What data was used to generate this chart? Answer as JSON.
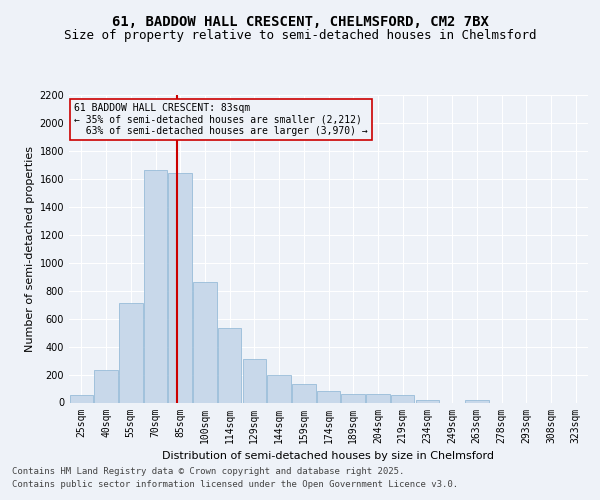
{
  "title": "61, BADDOW HALL CRESCENT, CHELMSFORD, CM2 7BX",
  "subtitle": "Size of property relative to semi-detached houses in Chelmsford",
  "xlabel": "Distribution of semi-detached houses by size in Chelmsford",
  "ylabel": "Number of semi-detached properties",
  "categories": [
    "25sqm",
    "40sqm",
    "55sqm",
    "70sqm",
    "85sqm",
    "100sqm",
    "114sqm",
    "129sqm",
    "144sqm",
    "159sqm",
    "174sqm",
    "189sqm",
    "204sqm",
    "219sqm",
    "234sqm",
    "249sqm",
    "263sqm",
    "278sqm",
    "293sqm",
    "308sqm",
    "323sqm"
  ],
  "values": [
    55,
    230,
    710,
    1660,
    1640,
    860,
    530,
    310,
    195,
    130,
    80,
    60,
    60,
    55,
    20,
    0,
    20,
    0,
    0,
    0,
    0
  ],
  "bar_color": "#c8d8ea",
  "bar_edge_color": "#8ab4d4",
  "marker_label": "61 BADDOW HALL CRESCENT: 83sqm",
  "smaller_pct": "35% of semi-detached houses are smaller (2,212)",
  "larger_pct": "63% of semi-detached houses are larger (3,970)",
  "vline_color": "#cc0000",
  "annotation_box_color": "#cc0000",
  "ylim": [
    0,
    2200
  ],
  "yticks": [
    0,
    200,
    400,
    600,
    800,
    1000,
    1200,
    1400,
    1600,
    1800,
    2000,
    2200
  ],
  "footer_line1": "Contains HM Land Registry data © Crown copyright and database right 2025.",
  "footer_line2": "Contains public sector information licensed under the Open Government Licence v3.0.",
  "bg_color": "#eef2f8",
  "grid_color": "#ffffff",
  "title_fontsize": 10,
  "subtitle_fontsize": 9,
  "axis_fontsize": 8,
  "tick_fontsize": 7,
  "footer_fontsize": 6.5
}
